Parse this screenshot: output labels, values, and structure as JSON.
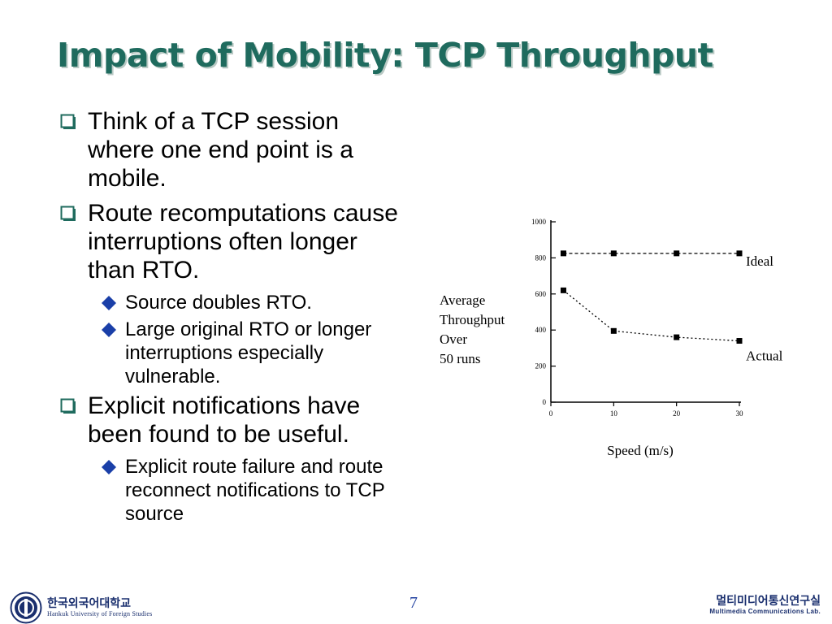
{
  "slide": {
    "title": "Impact of Mobility: TCP Throughput",
    "bullets": [
      {
        "text": "Think of a TCP session where one end point is a mobile.",
        "sub": []
      },
      {
        "text": "Route recomputations cause interruptions often longer than RTO.",
        "sub": [
          "Source doubles RTO.",
          "Large original RTO or longer interruptions especially vulnerable."
        ]
      },
      {
        "text": "Explicit notifications have been found to be useful.",
        "sub": [
          "Explicit route failure and route reconnect notifications to TCP source"
        ]
      }
    ],
    "page_number": "7"
  },
  "footer": {
    "university_korean": "한국외국어대학교",
    "university_english": "Hankuk University of Foreign Studies",
    "lab_korean": "멀티미디어통신연구실",
    "lab_english": "Multimedia Communications Lab."
  },
  "colors": {
    "title": "#1f6b5e",
    "bullet_square": "#1f6b5e",
    "sub_bullet_diamond": "#1a3fa8",
    "footer": "#1a2f6e"
  },
  "chart_data": {
    "type": "line",
    "xlabel": "Speed (m/s)",
    "ylabel_lines": [
      "Average",
      "Throughput",
      "Over",
      "50 runs"
    ],
    "x_ticks": [
      "0",
      "10",
      "20",
      "30"
    ],
    "y_ticks": [
      "0",
      "200",
      "400",
      "600",
      "800",
      "1000"
    ],
    "xlim": [
      0,
      30
    ],
    "ylim": [
      0,
      1000
    ],
    "grid": false,
    "series": [
      {
        "name": "Ideal",
        "x": [
          2,
          10,
          20,
          30
        ],
        "y": [
          825,
          825,
          825,
          825
        ]
      },
      {
        "name": "Actual",
        "x": [
          2,
          10,
          20,
          30
        ],
        "y": [
          620,
          395,
          360,
          340
        ]
      }
    ]
  }
}
